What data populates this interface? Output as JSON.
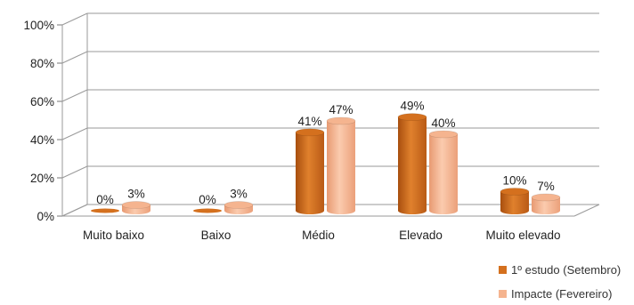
{
  "chart_data": {
    "type": "bar",
    "title": "",
    "xlabel": "",
    "ylabel": "",
    "ylim": [
      0,
      100
    ],
    "y_ticks": [
      0,
      20,
      40,
      60,
      80,
      100
    ],
    "y_tick_labels": [
      "0%",
      "20%",
      "40%",
      "60%",
      "80%",
      "100%"
    ],
    "grid": true,
    "legend_position": "bottom-right",
    "categories": [
      "Muito baixo",
      "Baixo",
      "Médio",
      "Elevado",
      "Muito elevado"
    ],
    "series": [
      {
        "name": "1º estudo (Setembro)",
        "color": "#D4701E",
        "values": [
          0,
          0,
          41,
          49,
          10
        ],
        "labels": [
          "0%",
          "0%",
          "41%",
          "49%",
          "10%"
        ]
      },
      {
        "name": "Impacte (Fevereiro)",
        "color": "#F5B48F",
        "values": [
          3,
          3,
          47,
          40,
          7
        ],
        "labels": [
          "3%",
          "3%",
          "47%",
          "40%",
          "7%"
        ]
      }
    ]
  }
}
